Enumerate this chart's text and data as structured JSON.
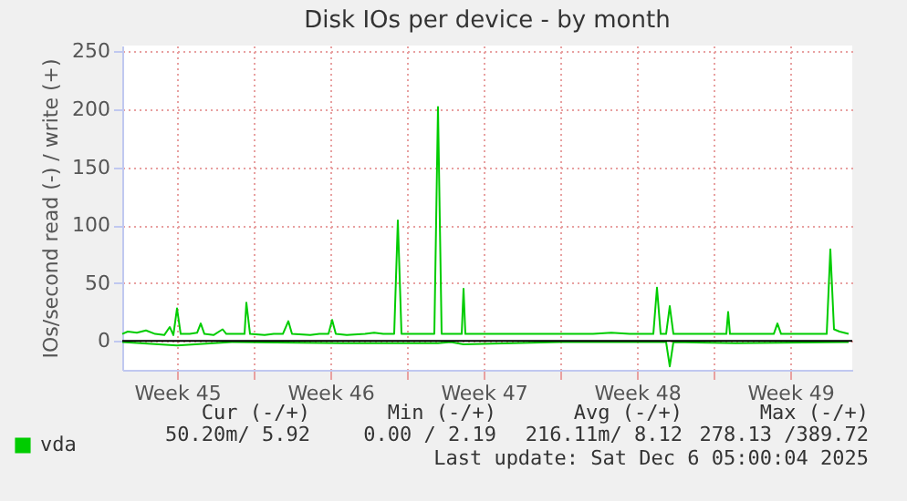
{
  "chart_data": {
    "type": "line",
    "title": "Disk IOs per device - by month",
    "ylabel": "IOs/second read (-) / write (+)",
    "xlim": [
      "2025-11-03T00:00",
      "2025-12-06T08:00"
    ],
    "ylim": [
      -25,
      255
    ],
    "yticks": [
      0,
      50,
      100,
      150,
      200,
      250
    ],
    "xticks": [
      {
        "value": "2025-11-05T12:00",
        "label": "Week 45"
      },
      {
        "value": "2025-11-09T00:00",
        "label": null
      },
      {
        "value": "2025-11-12T12:00",
        "label": "Week 46"
      },
      {
        "value": "2025-11-16T00:00",
        "label": null
      },
      {
        "value": "2025-11-19T12:00",
        "label": "Week 47"
      },
      {
        "value": "2025-11-23T00:00",
        "label": null
      },
      {
        "value": "2025-11-26T12:00",
        "label": "Week 48"
      },
      {
        "value": "2025-11-30T00:00",
        "label": null
      },
      {
        "value": "2025-12-03T12:00",
        "label": "Week 49"
      }
    ],
    "grid": true,
    "legend": "bottom left",
    "series": [
      {
        "name": "vda",
        "color": "#00cc00",
        "x": [
          "2025-11-03T00:00",
          "2025-11-03T06:00",
          "2025-11-03T16:00",
          "2025-11-04T02:00",
          "2025-11-04T12:00",
          "2025-11-04T22:00",
          "2025-11-05T04:00",
          "2025-11-05T08:00",
          "2025-11-05T12:00",
          "2025-11-05T16:00",
          "2025-11-06T02:00",
          "2025-11-06T10:00",
          "2025-11-06T14:00",
          "2025-11-06T18:00",
          "2025-11-07T04:00",
          "2025-11-07T14:00",
          "2025-11-07T18:00",
          "2025-11-08T06:00",
          "2025-11-08T14:00",
          "2025-11-08T16:00",
          "2025-11-08T20:00",
          "2025-11-09T12:00",
          "2025-11-09T22:00",
          "2025-11-10T08:00",
          "2025-11-10T14:00",
          "2025-11-10T18:00",
          "2025-11-11T14:00",
          "2025-11-12T00:00",
          "2025-11-12T10:00",
          "2025-11-12T14:00",
          "2025-11-12T18:00",
          "2025-11-13T06:00",
          "2025-11-14T02:00",
          "2025-11-14T12:00",
          "2025-11-14T22:00",
          "2025-11-15T10:00",
          "2025-11-15T14:00",
          "2025-11-15T18:00",
          "2025-11-16T14:00",
          "2025-11-17T06:00",
          "2025-11-17T10:00",
          "2025-11-17T14:00",
          "2025-11-18T06:00",
          "2025-11-18T12:00",
          "2025-11-18T14:00",
          "2025-11-18T16:00",
          "2025-11-19T12:00",
          "2025-11-20T08:00",
          "2025-11-21T04:00",
          "2025-11-22T00:00",
          "2025-11-22T20:00",
          "2025-11-23T16:00",
          "2025-11-24T12:00",
          "2025-11-25T08:00",
          "2025-11-26T04:00",
          "2025-11-27T00:00",
          "2025-11-27T06:00",
          "2025-11-27T10:00",
          "2025-11-27T14:00",
          "2025-11-27T20:00",
          "2025-11-28T00:00",
          "2025-11-28T04:00",
          "2025-11-28T16:00",
          "2025-11-29T12:00",
          "2025-11-30T08:00",
          "2025-11-30T14:00",
          "2025-11-30T16:00",
          "2025-11-30T18:00",
          "2025-12-01T14:00",
          "2025-12-02T10:00",
          "2025-12-02T18:00",
          "2025-12-02T22:00",
          "2025-12-03T02:00",
          "2025-12-04T02:00",
          "2025-12-04T22:00",
          "2025-12-05T04:00",
          "2025-12-05T08:00",
          "2025-12-05T12:00",
          "2025-12-05T18:00",
          "2025-12-06T04:00"
        ],
        "values": [
          6,
          8,
          7,
          9,
          6,
          5,
          12,
          5,
          28,
          6,
          6,
          7,
          15,
          6,
          5,
          10,
          6,
          6,
          6,
          33,
          6,
          5,
          6,
          6,
          17,
          6,
          5,
          6,
          6,
          18,
          6,
          5,
          6,
          7,
          6,
          6,
          104,
          6,
          6,
          6,
          202,
          6,
          6,
          6,
          45,
          6,
          6,
          6,
          6,
          6,
          6,
          6,
          6,
          7,
          6,
          6,
          6,
          46,
          6,
          6,
          30,
          6,
          6,
          6,
          6,
          6,
          25,
          6,
          6,
          6,
          6,
          15,
          6,
          6,
          6,
          6,
          79,
          10,
          8,
          6
        ]
      },
      {
        "color": "#00cc00",
        "x": [
          "2025-11-03T00:00",
          "2025-11-05T12:00",
          "2025-11-08T00:00",
          "2025-11-13T00:00",
          "2025-11-17T10:00",
          "2025-11-18T00:00",
          "2025-11-18T14:00",
          "2025-11-23T00:00",
          "2025-11-27T20:00",
          "2025-11-28T00:00",
          "2025-11-28T04:00",
          "2025-12-01T00:00",
          "2025-12-06T04:00"
        ],
        "values": [
          -1,
          -4,
          -1,
          -2,
          -2,
          -1,
          -3,
          -1,
          -1,
          -22,
          -1,
          -2,
          -1
        ]
      }
    ],
    "annotations": [
      "Cur (-/+)",
      "Min (-/+)",
      "Avg (-/+)",
      "Max (-/+)",
      "50.20m/  5.92",
      "0.00 /  2.19",
      "216.11m/  8.12",
      "278.13 /389.72",
      "Last update: Sat Dec  6 05:00:04 2025"
    ]
  }
}
